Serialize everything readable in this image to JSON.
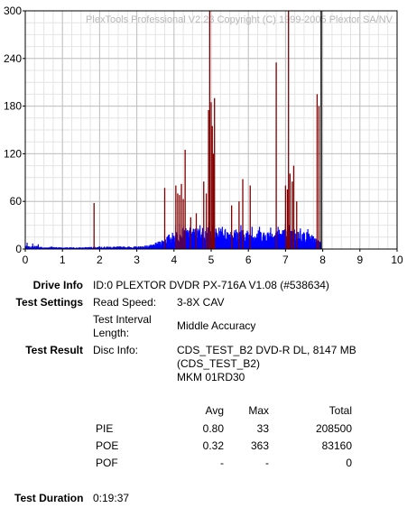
{
  "chart_data": {
    "type": "bar",
    "watermark": "PlexTools Professional V2.23 Copyright (C) 1999-2005 Plextor SA/NV",
    "x_ticks": [
      "0",
      "1",
      "2",
      "3",
      "4",
      "5",
      "6",
      "7",
      "8",
      "9",
      "10"
    ],
    "y_ticks": [
      "0",
      "60",
      "120",
      "180",
      "240",
      "300"
    ],
    "xlim": [
      0,
      10
    ],
    "ylim": [
      0,
      300
    ],
    "grid": true,
    "end_marker_x": 7.96,
    "colors": {
      "pie": "#0000ff",
      "poe": "#800000",
      "end_marker": "#000000",
      "grid": "#c0c0c0"
    },
    "series": [
      {
        "key": "pie",
        "envelope": [
          [
            0.0,
            4
          ],
          [
            0.1,
            3
          ],
          [
            0.3,
            4
          ],
          [
            0.5,
            2
          ],
          [
            0.7,
            3
          ],
          [
            1.0,
            2
          ],
          [
            1.5,
            2
          ],
          [
            2.0,
            3
          ],
          [
            2.5,
            3
          ],
          [
            3.0,
            3
          ],
          [
            3.2,
            4
          ],
          [
            3.4,
            5
          ],
          [
            3.5,
            7
          ],
          [
            3.6,
            9
          ],
          [
            3.7,
            12
          ],
          [
            3.8,
            15
          ],
          [
            3.9,
            18
          ],
          [
            4.0,
            20
          ],
          [
            4.1,
            22
          ],
          [
            4.2,
            24
          ],
          [
            4.5,
            25
          ],
          [
            5.0,
            25
          ],
          [
            5.5,
            24
          ],
          [
            6.0,
            22
          ],
          [
            6.5,
            22
          ],
          [
            7.0,
            24
          ],
          [
            7.3,
            23
          ],
          [
            7.6,
            20
          ],
          [
            7.8,
            14
          ],
          [
            7.9,
            10
          ],
          [
            7.96,
            8
          ]
        ],
        "spikes": [
          [
            0.05,
            8
          ],
          [
            0.2,
            7
          ],
          [
            0.35,
            6
          ],
          [
            4.05,
            30
          ],
          [
            4.15,
            32
          ],
          [
            4.25,
            30
          ],
          [
            4.45,
            30
          ],
          [
            4.7,
            30
          ],
          [
            4.95,
            33
          ],
          [
            5.05,
            30
          ],
          [
            5.3,
            28
          ],
          [
            5.8,
            30
          ],
          [
            6.1,
            28
          ],
          [
            6.3,
            28
          ],
          [
            6.6,
            27
          ],
          [
            6.8,
            28
          ],
          [
            7.0,
            32
          ],
          [
            7.1,
            30
          ],
          [
            7.4,
            26
          ],
          [
            7.6,
            25
          ]
        ]
      },
      {
        "key": "poe",
        "spikes": [
          [
            1.85,
            58
          ],
          [
            3.75,
            77
          ],
          [
            4.05,
            80
          ],
          [
            4.1,
            70
          ],
          [
            4.15,
            68
          ],
          [
            4.2,
            82
          ],
          [
            4.25,
            63
          ],
          [
            4.3,
            125
          ],
          [
            4.45,
            40
          ],
          [
            4.6,
            45
          ],
          [
            4.8,
            85
          ],
          [
            4.87,
            70
          ],
          [
            4.93,
            175
          ],
          [
            4.96,
            301
          ],
          [
            5.0,
            185
          ],
          [
            5.03,
            155
          ],
          [
            5.06,
            120
          ],
          [
            5.09,
            190
          ],
          [
            5.55,
            55
          ],
          [
            5.75,
            60
          ],
          [
            5.85,
            88
          ],
          [
            6.05,
            80
          ],
          [
            6.75,
            235
          ],
          [
            7.0,
            80
          ],
          [
            7.05,
            75
          ],
          [
            7.08,
            301
          ],
          [
            7.12,
            95
          ],
          [
            7.18,
            85
          ],
          [
            7.22,
            105
          ],
          [
            7.3,
            60
          ],
          [
            7.85,
            195
          ],
          [
            7.9,
            180
          ]
        ]
      }
    ]
  },
  "info": {
    "drive_info_label": "Drive Info",
    "drive_info_value": "ID:0 PLEXTOR DVDR PX-716A V1.08 (#538634)",
    "test_settings_label": "Test Settings",
    "read_speed_label": "Read Speed:",
    "read_speed_value": "3-8X CAV",
    "interval_label_1": "Test Interval",
    "interval_label_2": "Length:",
    "interval_value": "Middle Accuracy",
    "test_result_label": "Test Result",
    "disc_info_label": "Disc Info:",
    "disc_info_1": "CDS_TEST_B2 DVD-R DL, 8147 MB",
    "disc_info_2": "(CDS_TEST_B2)",
    "disc_info_3": "MKM 01RD30",
    "test_duration_label": "Test Duration",
    "test_duration_value": "0:19:37"
  },
  "results": {
    "headers": {
      "avg": "Avg",
      "max": "Max",
      "total": "Total"
    },
    "rows": [
      {
        "name": "PIE",
        "avg": "0.80",
        "max": "33",
        "total": "208500"
      },
      {
        "name": "POE",
        "avg": "0.32",
        "max": "363",
        "total": "83160"
      },
      {
        "name": "POF",
        "avg": "-",
        "max": "-",
        "total": "0"
      }
    ]
  }
}
